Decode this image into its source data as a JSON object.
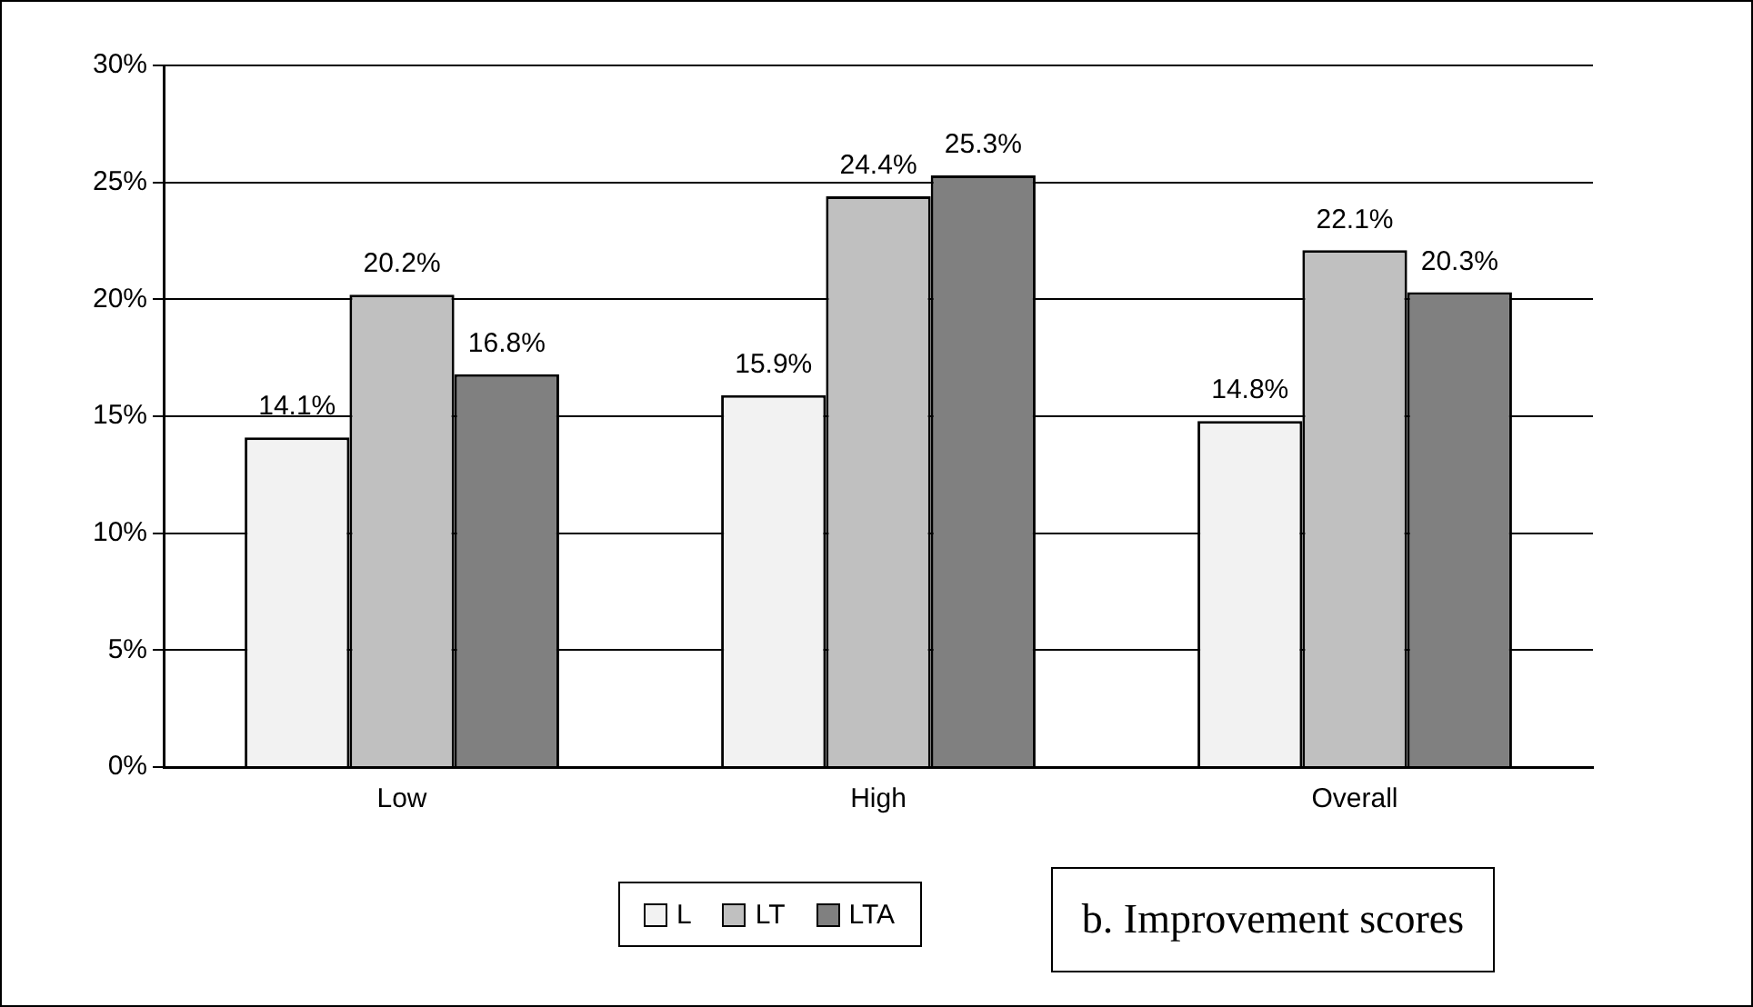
{
  "chart_data": {
    "type": "bar",
    "categories": [
      "Low",
      "High",
      "Overall"
    ],
    "series": [
      {
        "name": "L",
        "color": "#f2f2f2",
        "values": [
          14.1,
          15.9,
          14.8
        ],
        "value_labels": [
          "14.1%",
          "15.9%",
          "14.8%"
        ]
      },
      {
        "name": "LT",
        "color": "#c0c0c0",
        "values": [
          20.2,
          24.4,
          22.1
        ],
        "value_labels": [
          "20.2%",
          "24.4%",
          "22.1%"
        ]
      },
      {
        "name": "LTA",
        "color": "#808080",
        "values": [
          16.8,
          25.3,
          20.3
        ],
        "value_labels": [
          "16.8%",
          "25.3%",
          "20.3%"
        ]
      }
    ],
    "ylim": [
      0,
      30
    ],
    "yticks": [
      {
        "value": 0,
        "label": "0%"
      },
      {
        "value": 5,
        "label": "5%"
      },
      {
        "value": 10,
        "label": "10%"
      },
      {
        "value": 15,
        "label": "15%"
      },
      {
        "value": 20,
        "label": "20%"
      },
      {
        "value": 25,
        "label": "25%"
      },
      {
        "value": 30,
        "label": "30%"
      }
    ],
    "grid": "y",
    "legend": "bottom",
    "annotations": [
      "b. Improvement scores"
    ]
  }
}
